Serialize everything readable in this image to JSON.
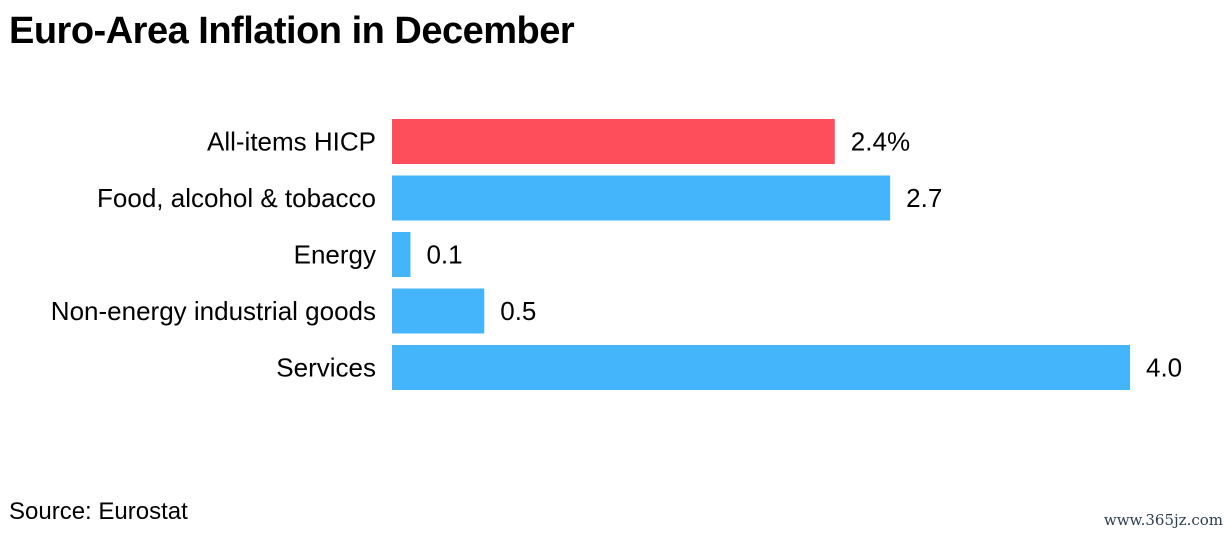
{
  "title": "Euro-Area Inflation in December",
  "source": "Source: Eurostat",
  "watermark": "www.365jz.com",
  "chart_data": {
    "type": "bar",
    "orientation": "horizontal",
    "categories": [
      "All-items HICP",
      "Food, alcohol & tobacco",
      "Energy",
      "Non-energy industrial goods",
      "Services"
    ],
    "values": [
      2.4,
      2.7,
      0.1,
      0.5,
      4.0
    ],
    "value_labels": [
      "2.4%",
      "2.7",
      "0.1",
      "0.5",
      "4.0"
    ],
    "colors": [
      "#ff4e5b",
      "#44b4fb",
      "#44b4fb",
      "#44b4fb",
      "#44b4fb"
    ],
    "xlim": [
      0,
      4.0
    ],
    "grid": false,
    "title": "Euro-Area Inflation in December",
    "xlabel": "",
    "ylabel": ""
  }
}
